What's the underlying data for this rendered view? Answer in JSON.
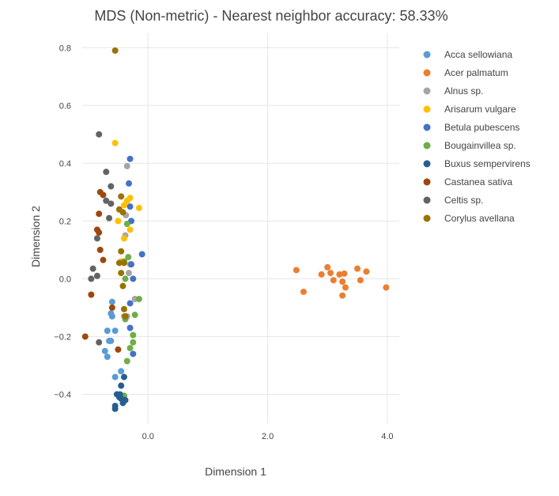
{
  "chart_data": {
    "type": "scatter",
    "title": "MDS (Non-metric) - Nearest neighbor accuracy: 58.33%",
    "xlabel": "Dimension 1",
    "ylabel": "Dimension 2",
    "xlim": [
      -1.1,
      4.2
    ],
    "ylim": [
      -0.5,
      0.85
    ],
    "x_ticks": [
      0.0,
      2.0,
      4.0
    ],
    "x_tick_labels": [
      "0.0",
      "2.0",
      "4.0"
    ],
    "y_ticks": [
      -0.4,
      -0.2,
      0.0,
      0.2,
      0.4,
      0.6,
      0.8
    ],
    "y_tick_labels": [
      "−0.4",
      "−0.2",
      "0.0",
      "0.2",
      "0.4",
      "0.6",
      "0.8"
    ],
    "grid": true,
    "legend_position": "right",
    "series": [
      {
        "name": "Acca sellowiana",
        "color": "#5b9bd5",
        "points": [
          [
            -0.6,
            -0.08
          ],
          [
            -0.62,
            -0.12
          ],
          [
            -0.6,
            -0.13
          ],
          [
            -0.68,
            -0.18
          ],
          [
            -0.55,
            -0.18
          ],
          [
            -0.65,
            -0.215
          ],
          [
            -0.62,
            -0.215
          ],
          [
            -0.72,
            -0.25
          ],
          [
            -0.68,
            -0.27
          ],
          [
            -0.45,
            -0.32
          ],
          [
            -0.55,
            -0.34
          ]
        ]
      },
      {
        "name": "Acer palmatum",
        "color": "#ed7d31",
        "points": [
          [
            2.48,
            0.03
          ],
          [
            2.6,
            -0.045
          ],
          [
            2.9,
            0.015
          ],
          [
            3.0,
            0.04
          ],
          [
            3.05,
            0.02
          ],
          [
            3.1,
            -0.005
          ],
          [
            3.2,
            0.015
          ],
          [
            3.25,
            -0.01
          ],
          [
            3.28,
            0.018
          ],
          [
            3.3,
            -0.03
          ],
          [
            3.25,
            -0.058
          ],
          [
            3.5,
            0.035
          ],
          [
            3.55,
            -0.005
          ],
          [
            3.65,
            0.025
          ],
          [
            3.98,
            -0.03
          ]
        ]
      },
      {
        "name": "Alnus sp.",
        "color": "#a5a5a5",
        "points": [
          [
            -0.35,
            0.39
          ],
          [
            -0.37,
            0.22
          ],
          [
            -0.38,
            0.15
          ],
          [
            -0.32,
            0.02
          ],
          [
            -0.3,
            0.05
          ],
          [
            -0.22,
            -0.07
          ],
          [
            -0.4,
            -0.13
          ],
          [
            -0.35,
            -0.13
          ]
        ]
      },
      {
        "name": "Arisarum vulgare",
        "color": "#ffc000",
        "points": [
          [
            -0.55,
            0.47
          ],
          [
            -0.3,
            0.28
          ],
          [
            -0.35,
            0.27
          ],
          [
            -0.4,
            0.255
          ],
          [
            -0.15,
            0.245
          ],
          [
            -0.3,
            0.17
          ],
          [
            -0.5,
            0.2
          ],
          [
            -0.4,
            0.14
          ],
          [
            -0.45,
            0.06
          ]
        ]
      },
      {
        "name": "Betula pubescens",
        "color": "#4472c4",
        "points": [
          [
            -0.3,
            0.415
          ],
          [
            -0.32,
            0.33
          ],
          [
            -0.3,
            0.25
          ],
          [
            -0.28,
            0.2
          ],
          [
            -0.1,
            0.085
          ],
          [
            -0.28,
            0.05
          ],
          [
            -0.25,
            0.0
          ],
          [
            -0.3,
            -0.085
          ],
          [
            -0.3,
            -0.17
          ],
          [
            -0.25,
            -0.26
          ]
        ]
      },
      {
        "name": "Bougainvillea sp.",
        "color": "#70ad47",
        "points": [
          [
            -0.35,
            0.19
          ],
          [
            -0.33,
            0.075
          ],
          [
            -0.4,
            0.06
          ],
          [
            -0.38,
            0.0
          ],
          [
            -0.15,
            -0.07
          ],
          [
            -0.22,
            -0.125
          ],
          [
            -0.38,
            -0.14
          ],
          [
            -0.25,
            -0.195
          ],
          [
            -0.25,
            -0.22
          ],
          [
            -0.3,
            -0.24
          ],
          [
            -0.35,
            -0.285
          ],
          [
            -0.4,
            -0.405
          ]
        ]
      },
      {
        "name": "Buxus sempervirens",
        "color": "#255e91",
        "points": [
          [
            -0.45,
            -0.37
          ],
          [
            -0.52,
            -0.4
          ],
          [
            -0.48,
            -0.41
          ],
          [
            -0.45,
            -0.415
          ],
          [
            -0.38,
            -0.42
          ],
          [
            -0.55,
            -0.44
          ],
          [
            -0.55,
            -0.45
          ],
          [
            -0.42,
            -0.43
          ],
          [
            -0.4,
            -0.34
          ],
          [
            -0.47,
            -0.4
          ]
        ]
      },
      {
        "name": "Castanea sativa",
        "color": "#9e480e",
        "points": [
          [
            -0.8,
            0.3
          ],
          [
            -0.75,
            0.29
          ],
          [
            -0.82,
            0.225
          ],
          [
            -0.85,
            0.17
          ],
          [
            -0.82,
            0.16
          ],
          [
            -0.8,
            0.1
          ],
          [
            -0.75,
            0.065
          ],
          [
            -0.6,
            -0.1
          ],
          [
            -0.95,
            -0.055
          ],
          [
            -1.05,
            -0.2
          ],
          [
            -0.5,
            -0.245
          ]
        ]
      },
      {
        "name": "Celtis sp.",
        "color": "#636363",
        "points": [
          [
            -0.82,
            0.5
          ],
          [
            -0.7,
            0.37
          ],
          [
            -0.62,
            0.32
          ],
          [
            -0.62,
            0.26
          ],
          [
            -0.7,
            0.27
          ],
          [
            -0.65,
            0.21
          ],
          [
            -0.85,
            0.14
          ],
          [
            -0.92,
            0.035
          ],
          [
            -0.85,
            0.01
          ],
          [
            -0.95,
            0.0
          ],
          [
            -0.82,
            -0.22
          ]
        ]
      },
      {
        "name": "Corylus avellana",
        "color": "#997300",
        "points": [
          [
            -0.55,
            0.79
          ],
          [
            -0.45,
            0.285
          ],
          [
            -0.48,
            0.24
          ],
          [
            -0.42,
            0.23
          ],
          [
            -0.45,
            0.095
          ],
          [
            -0.48,
            0.055
          ],
          [
            -0.4,
            0.055
          ],
          [
            -0.45,
            0.02
          ],
          [
            -0.42,
            -0.025
          ],
          [
            -0.4,
            -0.105
          ],
          [
            -0.38,
            -0.13
          ]
        ]
      }
    ]
  }
}
